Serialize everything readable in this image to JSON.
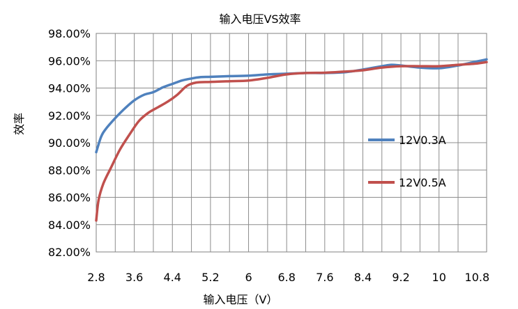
{
  "chart_data": {
    "type": "line",
    "title": "输入电压VS效率",
    "xlabel": "输入电压（V）",
    "ylabel": "效率",
    "x_ticks": [
      "2.8",
      "3.6",
      "4.4",
      "5.2",
      "6",
      "6.8",
      "7.6",
      "8.4",
      "9.2",
      "10",
      "10.8"
    ],
    "xlim": [
      2.8,
      11.0
    ],
    "ylim": [
      82,
      98
    ],
    "y_ticks": [
      "82.00%",
      "84.00%",
      "86.00%",
      "88.00%",
      "90.00%",
      "92.00%",
      "94.00%",
      "96.00%",
      "98.00%"
    ],
    "grid": true,
    "legend": "right",
    "series": [
      {
        "name": "12V0.3A",
        "color": "#4f81bd",
        "x": [
          2.8,
          2.9,
          3.0,
          3.2,
          3.4,
          3.6,
          3.8,
          4.0,
          4.2,
          4.4,
          4.6,
          4.8,
          5.0,
          5.2,
          5.6,
          6.0,
          6.4,
          6.8,
          7.2,
          7.6,
          8.0,
          8.4,
          8.8,
          9.0,
          9.2,
          9.6,
          10.0,
          10.4,
          10.8,
          11.0
        ],
        "y": [
          89.3,
          90.4,
          91.0,
          91.8,
          92.5,
          93.1,
          93.5,
          93.7,
          94.05,
          94.3,
          94.55,
          94.7,
          94.8,
          94.82,
          94.87,
          94.9,
          95.0,
          95.05,
          95.1,
          95.1,
          95.15,
          95.35,
          95.6,
          95.7,
          95.65,
          95.5,
          95.45,
          95.65,
          95.95,
          96.1
        ]
      },
      {
        "name": "12V0.5A",
        "color": "#c0504d",
        "x": [
          2.8,
          2.85,
          2.95,
          3.1,
          3.3,
          3.5,
          3.7,
          3.9,
          4.1,
          4.3,
          4.5,
          4.7,
          4.9,
          5.2,
          5.6,
          6.0,
          6.4,
          6.8,
          7.2,
          7.6,
          8.0,
          8.4,
          8.8,
          9.2,
          9.6,
          10.0,
          10.4,
          10.8,
          11.0
        ],
        "y": [
          84.3,
          85.8,
          87.0,
          88.1,
          89.5,
          90.6,
          91.6,
          92.2,
          92.6,
          93.0,
          93.5,
          94.15,
          94.4,
          94.45,
          94.5,
          94.55,
          94.75,
          95.0,
          95.1,
          95.12,
          95.2,
          95.3,
          95.5,
          95.6,
          95.6,
          95.6,
          95.7,
          95.8,
          95.9
        ]
      }
    ]
  }
}
